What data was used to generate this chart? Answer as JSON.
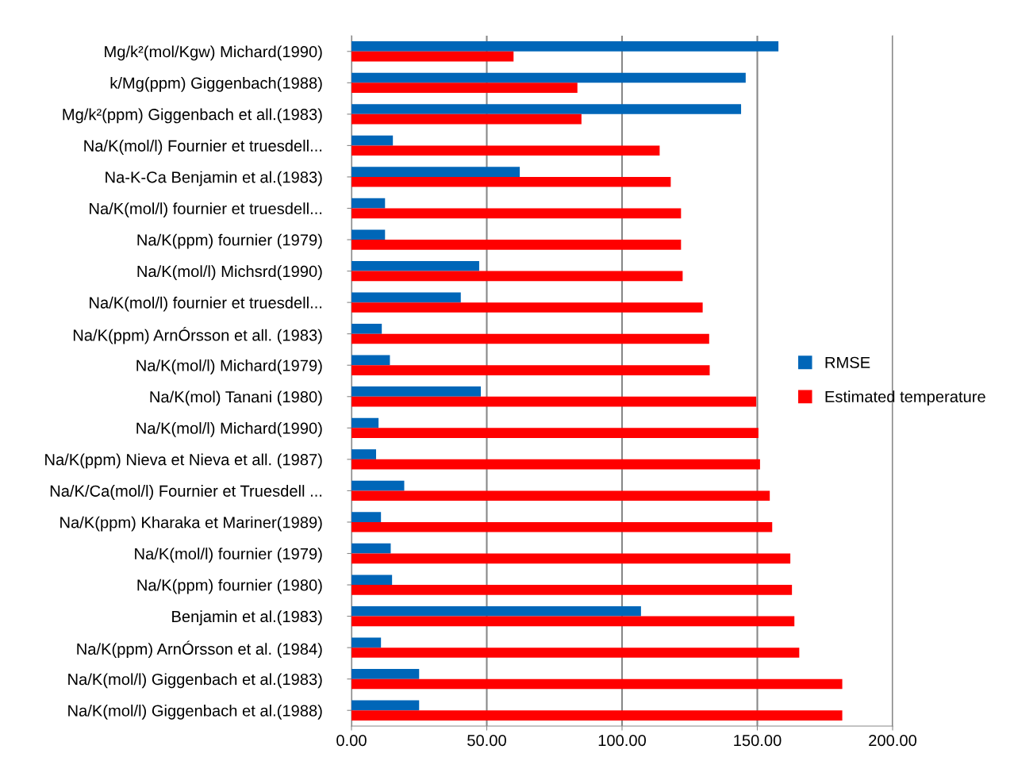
{
  "chart_data": {
    "type": "bar",
    "orientation": "horizontal",
    "categories": [
      "Mg/k²(mol/Kgw) Michard(1990)",
      "k/Mg(ppm) Giggenbach(1988)",
      "Mg/k²(ppm) Giggenbach et all.(1983)",
      "Na/K(mol/l) Fournier et truesdell...",
      "Na-K-Ca Benjamin et al.(1983)",
      "Na/K(mol/l) fournier et truesdell...",
      "Na/K(ppm) fournier (1979)",
      "Na/K(mol/l) Michsrd(1990)",
      "Na/K(mol/l) fournier et truesdell...",
      "Na/K(ppm) ArnÓrsson et all. (1983)",
      "Na/K(mol/l) Michard(1979)",
      "Na/K(mol) Tanani (1980)",
      "Na/K(mol/l) Michard(1990)",
      "Na/K(ppm) Nieva et Nieva et all. (1987)",
      "Na/K/Ca(mol/l) Fournier et Truesdell ...",
      "Na/K(ppm) Kharaka et Mariner(1989)",
      "Na/K(mol/l) fournier (1979)",
      "Na/K(ppm) fournier (1980)",
      "Benjamin et al.(1983)",
      "Na/K(ppm) ArnÓrsson et al. (1984)",
      "Na/K(mol/l) Giggenbach et al.(1983)",
      "Na/K(mol/l) Giggenbach et al.(1988)"
    ],
    "series": [
      {
        "name": "RMSE",
        "color": "#0066b8",
        "values": [
          157.8,
          145.7,
          144,
          15.3,
          62.2,
          12.4,
          12.4,
          47.2,
          40.4,
          11.2,
          14.2,
          47.8,
          10,
          9.1,
          19.5,
          10.9,
          14.5,
          15,
          107,
          10.9,
          25,
          25
        ]
      },
      {
        "name": "Estimated temperature",
        "color": "#ff0000",
        "values": [
          59.9,
          83.5,
          85,
          113.9,
          118,
          121.8,
          121.8,
          122.4,
          129.8,
          132.2,
          132.4,
          149.6,
          150.4,
          151,
          154.6,
          155.5,
          162.2,
          162.8,
          163.7,
          165.5,
          181.4,
          181.4
        ]
      }
    ],
    "xlim": [
      0,
      200
    ],
    "xticks": [
      {
        "value": 0,
        "label": "0.00"
      },
      {
        "value": 50,
        "label": "50.00"
      },
      {
        "value": 100,
        "label": "100.00"
      },
      {
        "value": 150,
        "label": "150.00"
      },
      {
        "value": 200,
        "label": "200.00"
      }
    ],
    "grid": "x",
    "legend": "right"
  }
}
